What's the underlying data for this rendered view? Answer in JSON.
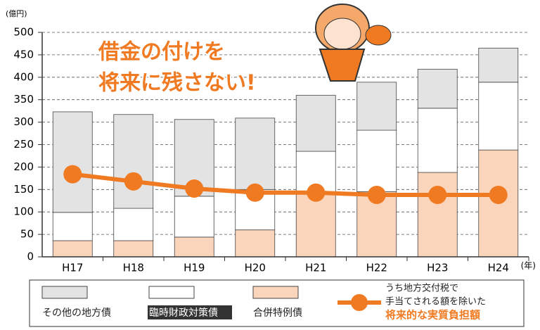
{
  "chart_data": {
    "type": "bar",
    "unit_label": "(億円)",
    "x_label": "(年)",
    "annotation": [
      "借金の付けを",
      "将来に残さない!"
    ],
    "categories": [
      "H17",
      "H18",
      "H19",
      "H20",
      "H21",
      "H22",
      "H23",
      "H24"
    ],
    "series": [
      {
        "name": "合併特例債",
        "color": "#fbd5bb",
        "values": [
          36,
          36,
          44,
          60,
          145,
          145,
          188,
          238
        ]
      },
      {
        "name": "臨時財政対策債",
        "color": "#ffffff",
        "values": [
          63,
          72,
          91,
          90,
          90,
          137,
          143,
          151
        ]
      },
      {
        "name": "その他の地方債",
        "color": "#e3e3e3",
        "values": [
          224,
          209,
          171,
          159,
          125,
          107,
          87,
          76
        ]
      }
    ],
    "line": {
      "name": [
        "うち地方交付税で",
        "手当てされる額を除いた",
        "将来的な実質負担額"
      ],
      "color": "#f07a22",
      "values": [
        184,
        168,
        152,
        143,
        143,
        138,
        138,
        138
      ]
    },
    "ylim": [
      0,
      500
    ],
    "yticks": [
      0,
      50,
      100,
      150,
      200,
      250,
      300,
      350,
      400,
      450,
      500
    ],
    "grid": true
  }
}
